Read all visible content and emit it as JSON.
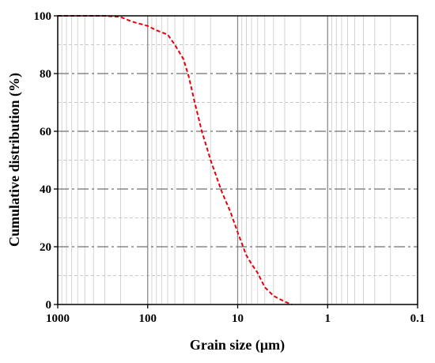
{
  "chart_data": {
    "type": "line",
    "xlabel": "Grain size (μm)",
    "ylabel": "Cumulative distribution (%)",
    "x_scale": "log",
    "x_reversed": true,
    "xlim": [
      1000,
      0.1
    ],
    "ylim": [
      0,
      100
    ],
    "x_ticks": [
      1000,
      100,
      10,
      1,
      0.1
    ],
    "x_tick_labels": [
      "1000",
      "100",
      "10",
      "1",
      "0.1"
    ],
    "y_ticks": [
      0,
      20,
      40,
      60,
      80,
      100
    ],
    "y_tick_labels": [
      "0",
      "20",
      "40",
      "60",
      "80",
      "100"
    ],
    "grid": true,
    "legend": "none",
    "series": [
      {
        "color": "#e8000b",
        "line_style": "dashed",
        "x": [
          1000,
          700,
          500,
          300,
          200,
          150,
          100,
          80,
          60,
          50,
          40,
          35,
          30,
          25,
          20,
          15,
          12,
          10,
          8,
          7,
          6,
          5,
          4,
          3,
          2.5
        ],
        "y": [
          100,
          100,
          100,
          100,
          99.6,
          98,
          96.5,
          95,
          93.5,
          90,
          85,
          79,
          70,
          60,
          50,
          39,
          32,
          25,
          17,
          14,
          11,
          6,
          3,
          1,
          0
        ]
      }
    ]
  }
}
